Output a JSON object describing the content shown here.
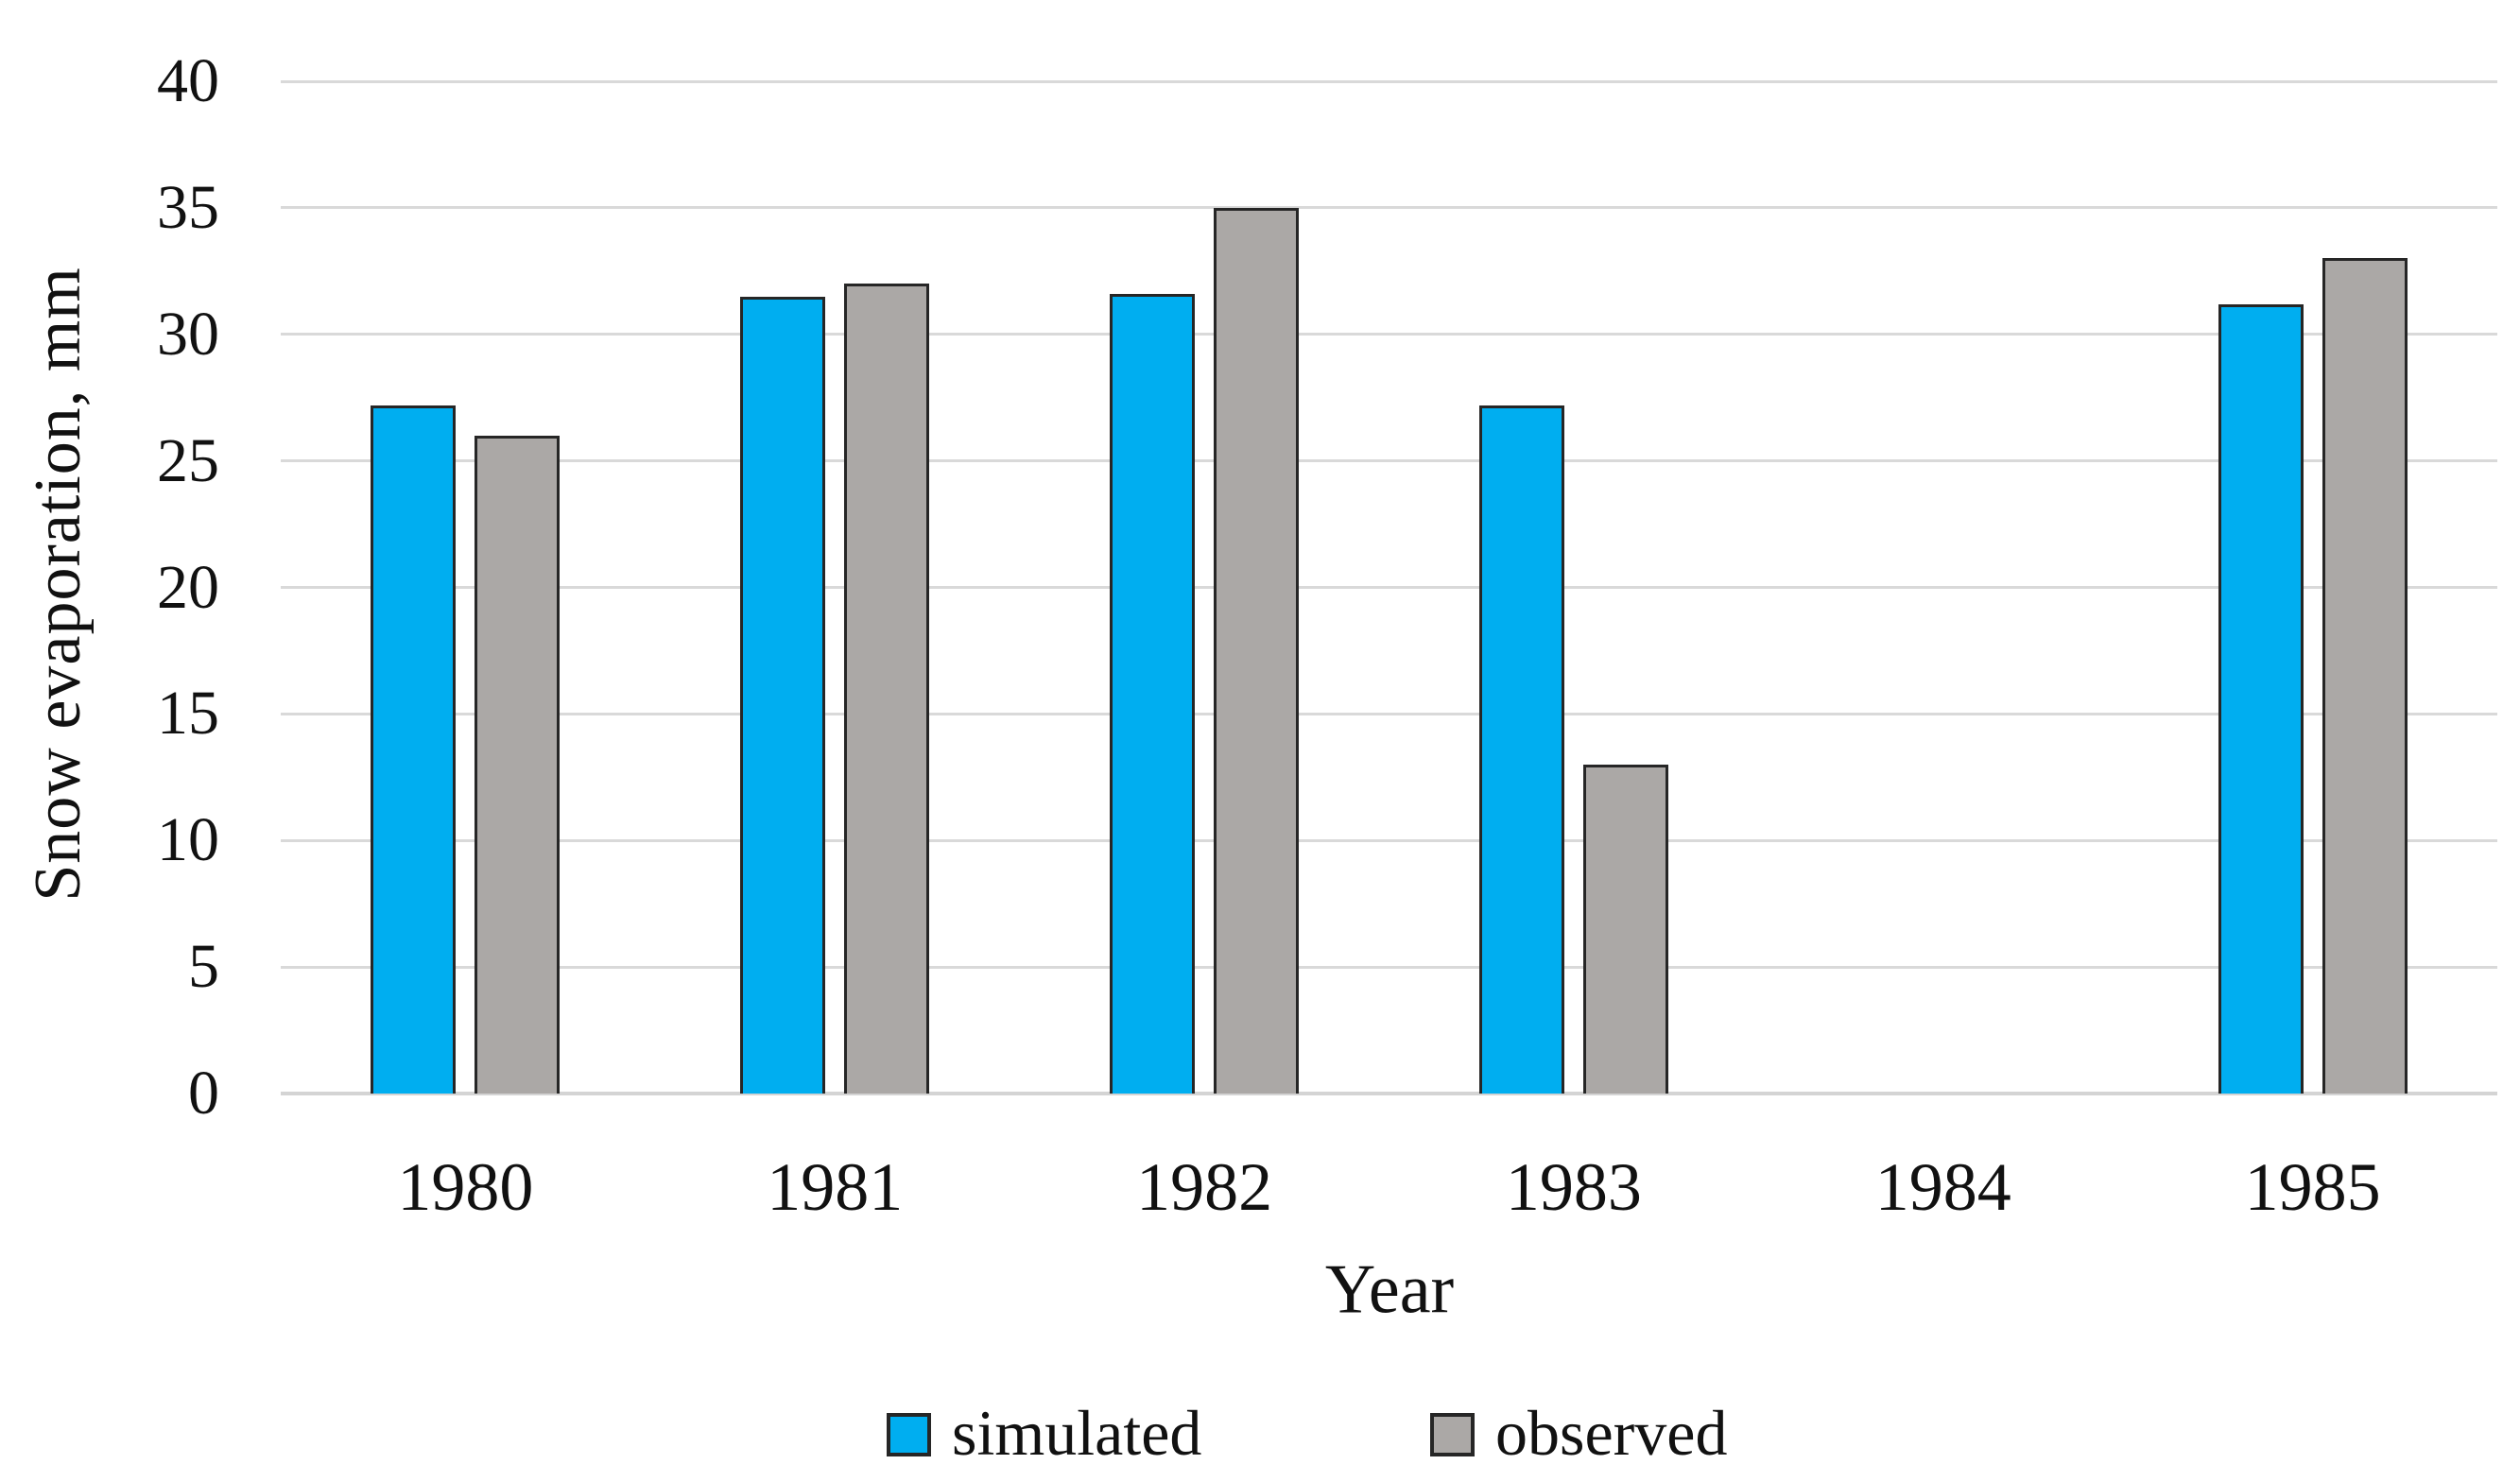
{
  "chart_data": {
    "type": "bar",
    "title": "",
    "categories": [
      "1980",
      "1981",
      "1982",
      "1983",
      "1984",
      "1985"
    ],
    "series": [
      {
        "name": "simulated",
        "color": "#00AEF0",
        "values": [
          27.2,
          31.5,
          31.6,
          27.2,
          null,
          31.2
        ]
      },
      {
        "name": "observed",
        "color": "#ABA8A6",
        "values": [
          26.0,
          32.0,
          35.0,
          13.0,
          null,
          33.0
        ]
      }
    ],
    "xlabel": "Year",
    "ylabel": "Snow evaporation, mm",
    "ylim": [
      0,
      40
    ],
    "ytick_step": 5,
    "yticks": [
      "40",
      "35",
      "30",
      "25",
      "20",
      "15",
      "10",
      "5",
      "0"
    ],
    "grid": "horizontal-only",
    "legend_position": "bottom-center",
    "bar_outline_color": "#262626",
    "gridline_color": "#d9d9d9"
  }
}
